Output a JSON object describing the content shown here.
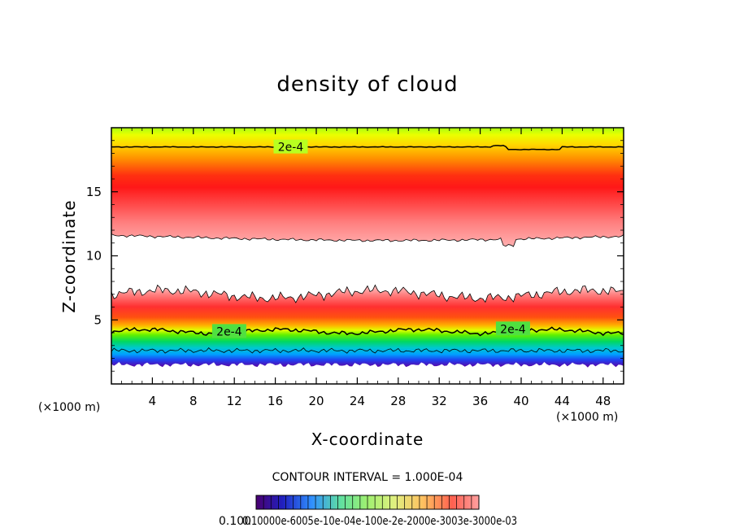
{
  "chart_data": {
    "type": "heatmap",
    "title": "density of cloud",
    "xlabel": "X-coordinate",
    "ylabel": "Z-coordinate",
    "x_unit_left": "(×1000 m)",
    "x_unit_right": "(×1000 m)",
    "xlim": [
      0,
      50
    ],
    "ylim": [
      0,
      20
    ],
    "x_ticks": [
      4,
      8,
      12,
      16,
      20,
      24,
      28,
      32,
      36,
      40,
      44,
      48
    ],
    "y_ticks": [
      5,
      10,
      15
    ],
    "contour_interval_text": "CONTOUR INTERVAL = 1.000E-04",
    "contour_label": "2e-4",
    "contour_labels": [
      {
        "text": "2e-4",
        "x": 17.5,
        "z": 18.5
      },
      {
        "text": "2e-4",
        "x": 11.5,
        "z": 4.1
      },
      {
        "text": "2e-4",
        "x": 39.2,
        "z": 4.3
      }
    ],
    "upper_cloud": {
      "z_base": 11.5,
      "z_top": 19.5,
      "z_peak": 14.5
    },
    "lower_cloud": {
      "z_base": 1.5,
      "z_top": 7.0,
      "z_peak": 5.5
    },
    "colorbar_min_label": "0.100",
    "colorbar_tick_text": "0.10000e-6005e-10e-04e-100e-2e-2000e-3003e-3000e-03",
    "colors": [
      "#5a0090",
      "#2020e0",
      "#00b0ff",
      "#00e060",
      "#a0ff00",
      "#ffff00",
      "#ffa000",
      "#ff2020",
      "#ff9090",
      "#ffffff"
    ]
  }
}
